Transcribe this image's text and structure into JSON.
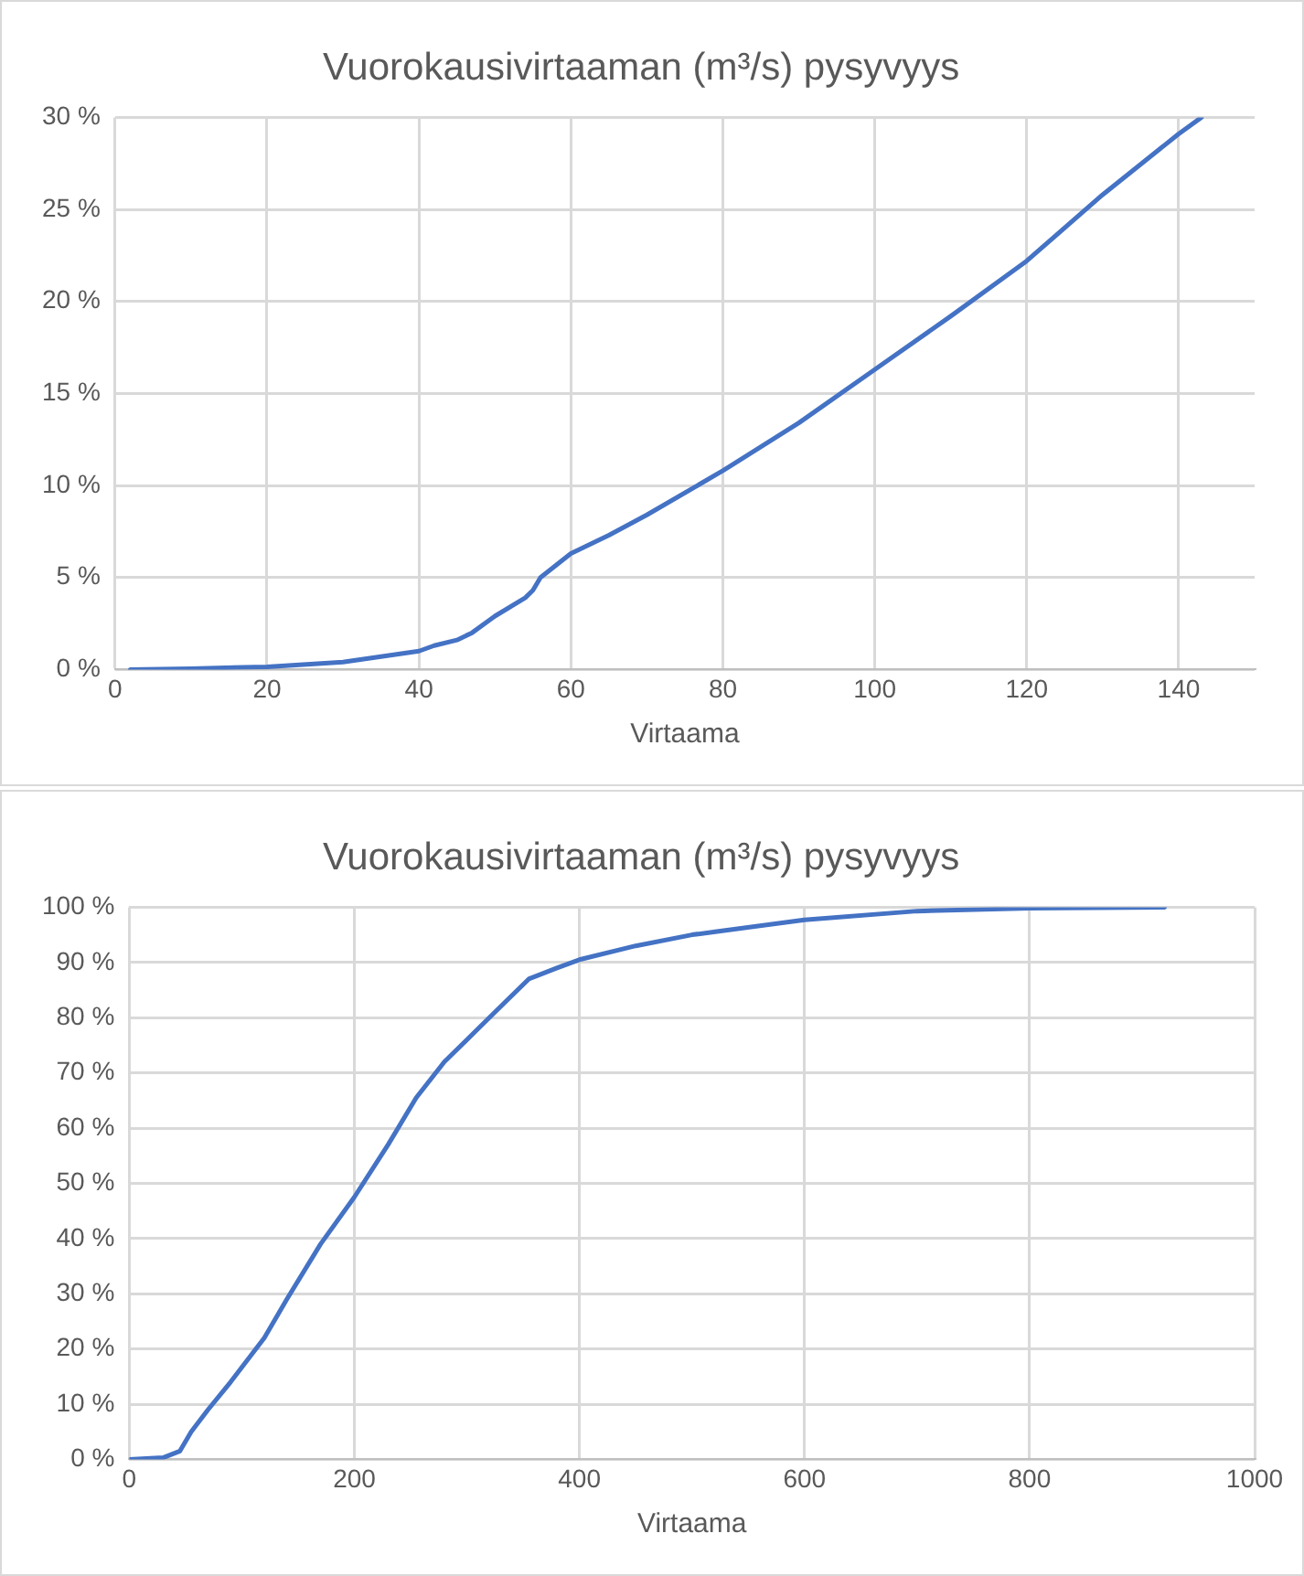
{
  "chart_data": [
    {
      "type": "line",
      "title": "Vuorokausivirtaaman (m³/s) pysyvyys",
      "xlabel": "Virtaama",
      "grid": true,
      "legend": false,
      "marker": "none",
      "line_style": "solid",
      "xlim": [
        0,
        150
      ],
      "xticks": [
        0,
        20,
        40,
        60,
        80,
        100,
        120,
        140
      ],
      "ylim": [
        0,
        30
      ],
      "yticks": [
        {
          "value": 0,
          "label": "0 %"
        },
        {
          "value": 5,
          "label": "5 %"
        },
        {
          "value": 10,
          "label": "10 %"
        },
        {
          "value": 15,
          "label": "15 %"
        },
        {
          "value": 20,
          "label": "20 %"
        },
        {
          "value": 25,
          "label": "25 %"
        },
        {
          "value": 30,
          "label": "30 %"
        }
      ],
      "x": [
        2,
        10,
        20,
        30,
        35,
        40,
        42,
        45,
        47,
        50,
        54,
        55,
        56,
        60,
        65,
        70,
        80,
        90,
        100,
        110,
        120,
        130,
        140,
        143
      ],
      "series": [
        {
          "color": "#4472c4",
          "values": [
            0,
            0.05,
            0.15,
            0.4,
            0.7,
            1.0,
            1.3,
            1.6,
            2.0,
            2.9,
            3.9,
            4.3,
            5.0,
            6.3,
            7.3,
            8.4,
            10.8,
            13.4,
            16.3,
            19.2,
            22.2,
            25.8,
            29.1,
            30
          ]
        }
      ]
    },
    {
      "type": "line",
      "title": "Vuorokausivirtaaman (m³/s) pysyvyys",
      "xlabel": "Virtaama",
      "grid": true,
      "legend": false,
      "marker": "none",
      "line_style": "solid",
      "xlim": [
        0,
        1000
      ],
      "xticks": [
        0,
        200,
        400,
        600,
        800,
        1000
      ],
      "ylim": [
        0,
        100
      ],
      "yticks": [
        {
          "value": 0,
          "label": "0 %"
        },
        {
          "value": 10,
          "label": "10 %"
        },
        {
          "value": 20,
          "label": "20 %"
        },
        {
          "value": 30,
          "label": "30 %"
        },
        {
          "value": 40,
          "label": "40 %"
        },
        {
          "value": 50,
          "label": "50 %"
        },
        {
          "value": 60,
          "label": "60 %"
        },
        {
          "value": 70,
          "label": "70 %"
        },
        {
          "value": 80,
          "label": "80 %"
        },
        {
          "value": 90,
          "label": "90 %"
        },
        {
          "value": 100,
          "label": "100 %"
        }
      ],
      "x": [
        0,
        30,
        45,
        55,
        70,
        90,
        120,
        140,
        170,
        200,
        230,
        255,
        280,
        310,
        335,
        345,
        355,
        380,
        400,
        450,
        500,
        600,
        700,
        800,
        920
      ],
      "series": [
        {
          "color": "#4472c4",
          "values": [
            0,
            0.3,
            1.5,
            5,
            9,
            14,
            22,
            29,
            39,
            47.5,
            57,
            65.5,
            72,
            78,
            83,
            85,
            87,
            89,
            90.5,
            93,
            95,
            97.7,
            99.3,
            99.8,
            100
          ]
        }
      ]
    }
  ]
}
